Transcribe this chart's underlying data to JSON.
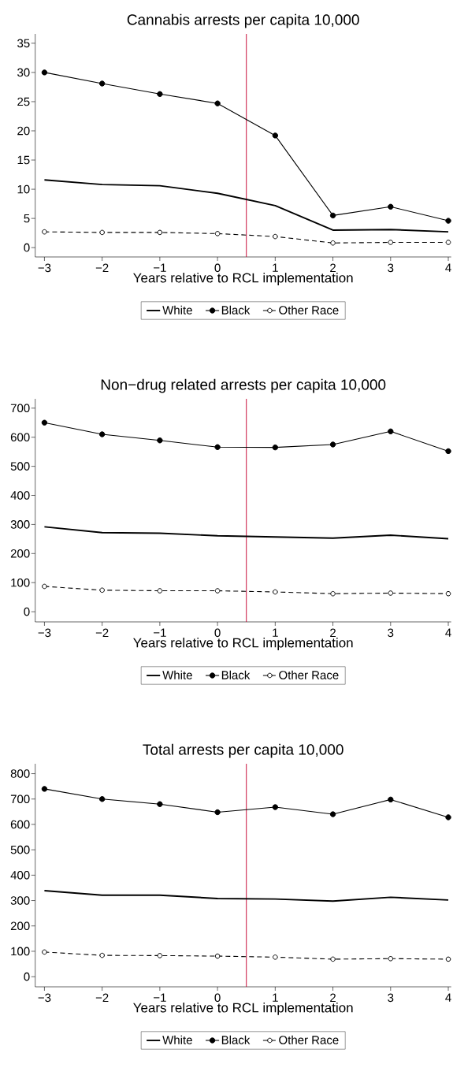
{
  "chart_data": [
    {
      "type": "line",
      "title": "Cannabis arrests per capita 10,000",
      "xlabel": "Years relative to RCL implementation",
      "x": [
        -3,
        -2,
        -1,
        0,
        1,
        2,
        3,
        4
      ],
      "xlim": [
        -3.16,
        4.05
      ],
      "ylim": [
        -1.6,
        36.6
      ],
      "xticks": [
        {
          "value": -3,
          "label": "−3"
        },
        {
          "value": -2,
          "label": "−2"
        },
        {
          "value": -1,
          "label": "−1"
        },
        0,
        1,
        2,
        3,
        4
      ],
      "yticks": [
        0,
        5,
        10,
        15,
        20,
        25,
        30,
        35
      ],
      "legend": "bottom",
      "ref_lines": [
        {
          "axis": "x",
          "value": 0.5,
          "color": "#c8103c"
        }
      ],
      "series": [
        {
          "name": "White",
          "color": "#000000",
          "marker": "none",
          "line_style": "solid",
          "values": [
            11.6,
            10.8,
            10.6,
            9.3,
            7.2,
            3.0,
            3.1,
            2.7
          ]
        },
        {
          "name": "Black",
          "color": "#000000",
          "marker": "circle",
          "line_style": "solid",
          "values": [
            30.0,
            28.1,
            26.3,
            24.7,
            19.2,
            5.5,
            7.0,
            4.6
          ]
        },
        {
          "name": "Other Race",
          "color": "#000000",
          "marker": "circle",
          "line_style": "dashed",
          "values": [
            2.7,
            2.6,
            2.6,
            2.4,
            1.9,
            0.8,
            0.9,
            0.9
          ]
        }
      ]
    },
    {
      "type": "line",
      "title": "Non−drug related arrests per capita 10,000",
      "xlabel": "Years relative to RCL implementation",
      "x": [
        -3,
        -2,
        -1,
        0,
        1,
        2,
        3,
        4
      ],
      "xlim": [
        -3.16,
        4.05
      ],
      "ylim": [
        -35,
        732
      ],
      "xticks": [
        {
          "value": -3,
          "label": "−3"
        },
        {
          "value": -2,
          "label": "−2"
        },
        {
          "value": -1,
          "label": "−1"
        },
        0,
        1,
        2,
        3,
        4
      ],
      "yticks": [
        0,
        100,
        200,
        300,
        400,
        500,
        600,
        700
      ],
      "legend": "bottom",
      "ref_lines": [
        {
          "axis": "x",
          "value": 0.5,
          "color": "#c8103c"
        }
      ],
      "series": [
        {
          "name": "White",
          "color": "#000000",
          "marker": "none",
          "line_style": "solid",
          "values": [
            292,
            272,
            270,
            261,
            257,
            253,
            263,
            251
          ]
        },
        {
          "name": "Black",
          "color": "#000000",
          "marker": "circle",
          "line_style": "solid",
          "values": [
            650,
            610,
            589,
            566,
            565,
            575,
            620,
            552
          ]
        },
        {
          "name": "Other Race",
          "color": "#000000",
          "marker": "circle",
          "line_style": "dashed",
          "values": [
            87,
            74,
            72,
            72,
            68,
            62,
            64,
            62
          ]
        }
      ]
    },
    {
      "type": "line",
      "title": "Total arrests per capita 10,000",
      "xlabel": "Years relative to RCL implementation",
      "x": [
        -3,
        -2,
        -1,
        0,
        1,
        2,
        3,
        4
      ],
      "xlim": [
        -3.16,
        4.05
      ],
      "ylim": [
        -40,
        839
      ],
      "xticks": [
        {
          "value": -3,
          "label": "−3"
        },
        {
          "value": -2,
          "label": "−2"
        },
        {
          "value": -1,
          "label": "−1"
        },
        0,
        1,
        2,
        3,
        4
      ],
      "yticks": [
        0,
        100,
        200,
        300,
        400,
        500,
        600,
        700,
        800
      ],
      "legend": "bottom",
      "ref_lines": [
        {
          "axis": "x",
          "value": 0.5,
          "color": "#c8103c"
        }
      ],
      "series": [
        {
          "name": "White",
          "color": "#000000",
          "marker": "none",
          "line_style": "solid",
          "values": [
            339,
            321,
            321,
            308,
            306,
            298,
            313,
            302
          ]
        },
        {
          "name": "Black",
          "color": "#000000",
          "marker": "circle",
          "line_style": "solid",
          "values": [
            740,
            700,
            680,
            648,
            668,
            640,
            698,
            628
          ]
        },
        {
          "name": "Other Race",
          "color": "#000000",
          "marker": "circle",
          "line_style": "dashed",
          "values": [
            97,
            84,
            83,
            81,
            77,
            69,
            71,
            69
          ]
        }
      ]
    }
  ]
}
